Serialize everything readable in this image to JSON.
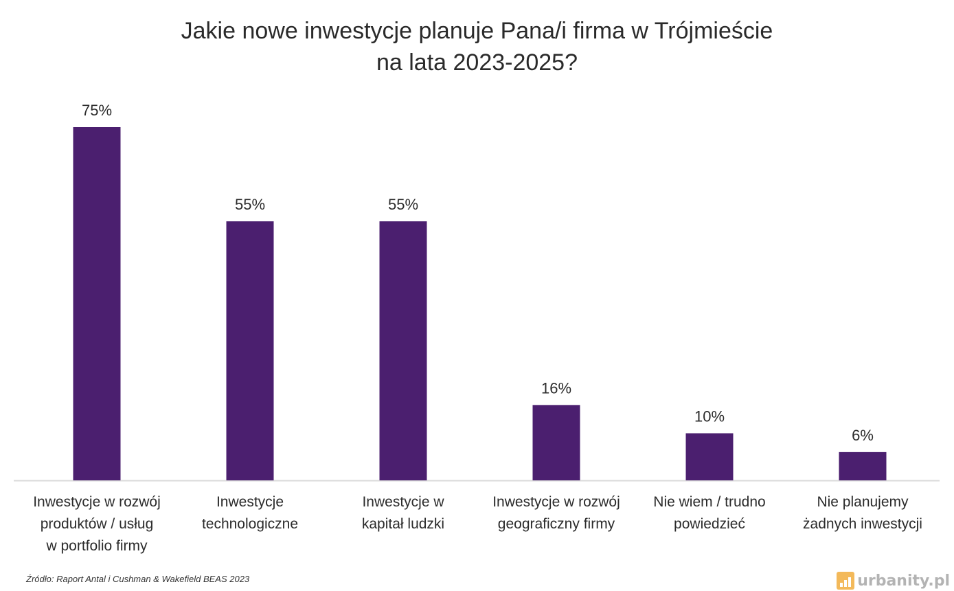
{
  "title_line1": "Jakie nowe inwestycje planuje Pana/i firma w Trójmieście",
  "title_line2": "na lata 2023-2025?",
  "source": "Źródło: Raport Antal i Cushman & Wakefield BEAS 2023",
  "watermark": "urbanity.pl",
  "colors": {
    "bar": "#4b1f6f",
    "axis": "#d9d9d9",
    "text": "#2b2b2b"
  },
  "chart_data": {
    "type": "bar",
    "title": "Jakie nowe inwestycje planuje Pana/i firma w Trójmieście na lata 2023-2025?",
    "categories": [
      "Inwestycje w rozwój\nproduktów / usług\nw portfolio firmy",
      "Inwestycje\ntechnologiczne",
      "Inwestycje w\nkapitał ludzki",
      "Inwestycje w rozwój\ngeograficzny firmy",
      "Nie  wiem / trudno\npowiedzieć",
      "Nie planujemy\nżadnych inwestycji"
    ],
    "values": [
      75,
      55,
      55,
      16,
      10,
      6
    ],
    "data_labels": [
      "75%",
      "55%",
      "55%",
      "16%",
      "10%",
      "6%"
    ],
    "unit": "%",
    "ylim": [
      0,
      75
    ],
    "grid": false,
    "legend": "none"
  }
}
